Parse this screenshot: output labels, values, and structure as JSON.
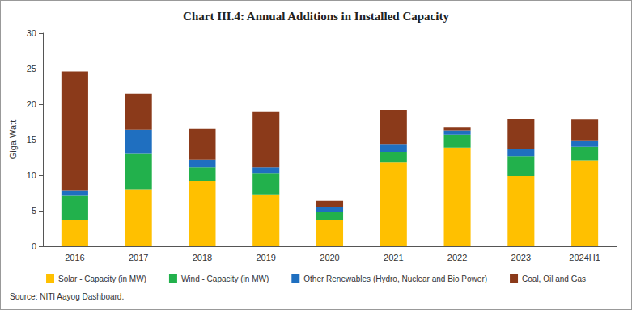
{
  "chart_data": {
    "type": "bar",
    "stacked": true,
    "title": "Chart III.4: Annual Additions in Installed Capacity",
    "source": "Source: NITI Aayog Dashboard.",
    "y_label": "Giga Watt",
    "categories": [
      "2016",
      "2017",
      "2018",
      "2019",
      "2020",
      "2021",
      "2022",
      "2023",
      "2024H1"
    ],
    "series": [
      {
        "name": "Solar - Capacity (in MW)",
        "color": "#FFC000",
        "values": [
          3.7,
          8.0,
          9.2,
          7.3,
          3.7,
          11.8,
          13.9,
          9.9,
          12.1
        ]
      },
      {
        "name": "Wind - Capacity (in MW)",
        "color": "#22B14C",
        "values": [
          3.4,
          5.0,
          1.9,
          3.0,
          1.1,
          1.5,
          1.8,
          2.8,
          1.9
        ]
      },
      {
        "name": "Other Renewables (Hydro, Nuclear and Bio Power)",
        "color": "#1F6FC0",
        "values": [
          0.8,
          3.4,
          1.1,
          0.8,
          0.7,
          1.1,
          0.6,
          1.0,
          0.8
        ]
      },
      {
        "name": "Coal, Oil and Gas",
        "color": "#8B3A1A",
        "values": [
          16.7,
          5.1,
          4.3,
          7.8,
          0.9,
          4.8,
          0.5,
          4.2,
          3.0
        ]
      }
    ],
    "ylim": [
      0,
      30
    ],
    "yticks": [
      0,
      5,
      10,
      15,
      20,
      25,
      30
    ],
    "grid": false,
    "legend": "bottom"
  }
}
